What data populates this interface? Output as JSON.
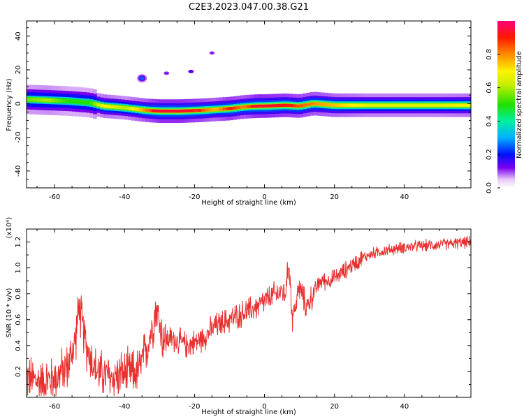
{
  "figure_title": "C2E3.2023.047.00.38.G21",
  "colorbar": {
    "label": "Normalized spectral amplitude",
    "ticks": [
      "0.0",
      "0.2",
      "0.4",
      "0.6",
      "0.8"
    ]
  },
  "chart_data": [
    {
      "type": "heatmap",
      "xlabel": "Height of straight line (km)",
      "ylabel": "Frequency (Hz)",
      "xlim": [
        -68,
        59
      ],
      "ylim": [
        -50,
        49
      ],
      "xticks": [
        "-60",
        "-40",
        "-20",
        "0",
        "20",
        "40"
      ],
      "yticks": [
        "40",
        "20",
        "0",
        "-20",
        "-40"
      ],
      "grid": false,
      "ridge_frequency_hz": [
        [
          -68,
          2.5
        ],
        [
          -62,
          2.0
        ],
        [
          -56,
          1.5
        ],
        [
          -50,
          0.5
        ],
        [
          -46,
          -1.5
        ],
        [
          -40,
          -2.5
        ],
        [
          -34,
          -4.0
        ],
        [
          -30,
          -4.5
        ],
        [
          -24,
          -4.5
        ],
        [
          -18,
          -4.0
        ],
        [
          -14,
          -3.5
        ],
        [
          -10,
          -3.0
        ],
        [
          -6,
          -2.0
        ],
        [
          -2,
          -1.5
        ],
        [
          0,
          -1.5
        ],
        [
          6,
          -1.0
        ],
        [
          10,
          -1.5
        ],
        [
          14,
          0.0
        ],
        [
          20,
          -1.0
        ],
        [
          30,
          -1.0
        ],
        [
          40,
          -1.0
        ],
        [
          50,
          -1.0
        ],
        [
          59,
          -1.0
        ]
      ],
      "ridge_amplitude": [
        [
          -68,
          0.55
        ],
        [
          -62,
          0.6
        ],
        [
          -56,
          0.5
        ],
        [
          -50,
          0.5
        ],
        [
          -46,
          0.7
        ],
        [
          -40,
          0.6
        ],
        [
          -34,
          0.8
        ],
        [
          -30,
          0.95
        ],
        [
          -24,
          0.95
        ],
        [
          -18,
          0.85
        ],
        [
          -14,
          0.75
        ],
        [
          -10,
          0.9
        ],
        [
          -6,
          0.8
        ],
        [
          -2,
          0.95
        ],
        [
          0,
          0.95
        ],
        [
          6,
          0.9
        ],
        [
          10,
          0.85
        ],
        [
          14,
          0.8
        ],
        [
          20,
          0.75
        ],
        [
          30,
          0.65
        ],
        [
          40,
          0.65
        ],
        [
          50,
          0.65
        ],
        [
          59,
          0.7
        ]
      ],
      "blobs": [
        {
          "x": -35,
          "y": 15,
          "amplitude": 0.25
        },
        {
          "x": -28,
          "y": 18,
          "amplitude": 0.05
        },
        {
          "x": -21,
          "y": 19,
          "amplitude": 0.08
        },
        {
          "x": -15,
          "y": 30,
          "amplitude": 0.04
        }
      ]
    },
    {
      "type": "line",
      "xlabel": "Height of straight line (km)",
      "ylabel": "SNR (10 * v/v)",
      "yscale_label": "(x10⁴)",
      "xlim": [
        -68,
        59
      ],
      "ylim": [
        0.0,
        1.3
      ],
      "xticks": [
        "-60",
        "-40",
        "-20",
        "0",
        "20",
        "40"
      ],
      "yticks": [
        "1.2",
        "1.0",
        "0.8",
        "0.6",
        "0.4",
        "0.2"
      ],
      "grid": false,
      "color": "#e8302f",
      "trend": [
        [
          -68,
          0.15
        ],
        [
          -64,
          0.12
        ],
        [
          -60,
          0.14
        ],
        [
          -56,
          0.25
        ],
        [
          -54,
          0.45
        ],
        [
          -53,
          0.7
        ],
        [
          -51,
          0.4
        ],
        [
          -48,
          0.2
        ],
        [
          -44,
          0.15
        ],
        [
          -40,
          0.18
        ],
        [
          -36,
          0.2
        ],
        [
          -34,
          0.35
        ],
        [
          -33,
          0.45
        ],
        [
          -32,
          0.55
        ],
        [
          -31,
          0.7
        ],
        [
          -29,
          0.45
        ],
        [
          -26,
          0.45
        ],
        [
          -22,
          0.4
        ],
        [
          -18,
          0.45
        ],
        [
          -14,
          0.55
        ],
        [
          -10,
          0.6
        ],
        [
          -6,
          0.65
        ],
        [
          -2,
          0.7
        ],
        [
          2,
          0.78
        ],
        [
          5,
          0.82
        ],
        [
          6,
          0.8
        ],
        [
          7,
          1.05
        ],
        [
          8,
          0.6
        ],
        [
          10,
          0.85
        ],
        [
          12,
          0.7
        ],
        [
          14,
          0.8
        ],
        [
          16,
          0.9
        ],
        [
          18,
          0.9
        ],
        [
          20,
          0.92
        ],
        [
          24,
          1.0
        ],
        [
          28,
          1.08
        ],
        [
          32,
          1.12
        ],
        [
          40,
          1.16
        ],
        [
          50,
          1.18
        ],
        [
          59,
          1.2
        ]
      ]
    }
  ]
}
